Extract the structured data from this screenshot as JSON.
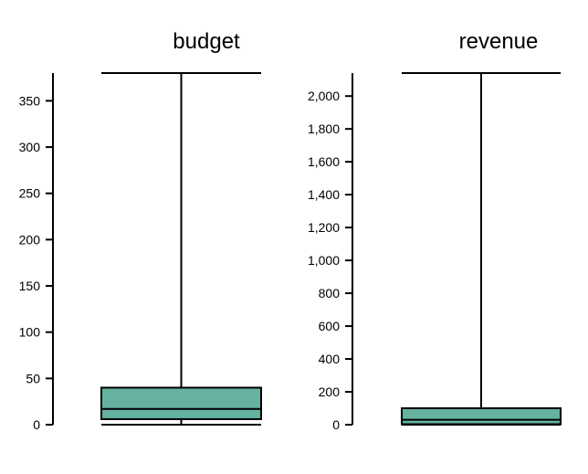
{
  "chart_data": [
    {
      "type": "box",
      "title": "budget",
      "ylim": [
        0,
        380
      ],
      "yticks": [
        0,
        50,
        100,
        150,
        200,
        250,
        300,
        350
      ],
      "tick_labels": [
        "0",
        "50",
        "100",
        "150",
        "200",
        "250",
        "300",
        "350"
      ],
      "box": {
        "min": 0,
        "q1": 6,
        "median": 17,
        "q3": 40,
        "max": 380
      },
      "color": "#66b2a0"
    },
    {
      "type": "box",
      "title": "revenue",
      "ylim": [
        0,
        2140
      ],
      "yticks": [
        0,
        200,
        400,
        600,
        800,
        1000,
        1200,
        1400,
        1600,
        1800,
        2000
      ],
      "tick_labels": [
        "0",
        "200",
        "400",
        "600",
        "800",
        "1,000",
        "1,200",
        "1,400",
        "1,600",
        "1,800",
        "2,000"
      ],
      "box": {
        "min": 0,
        "q1": 3,
        "median": 30,
        "q3": 100,
        "max": 2140
      },
      "color": "#66b2a0"
    }
  ]
}
